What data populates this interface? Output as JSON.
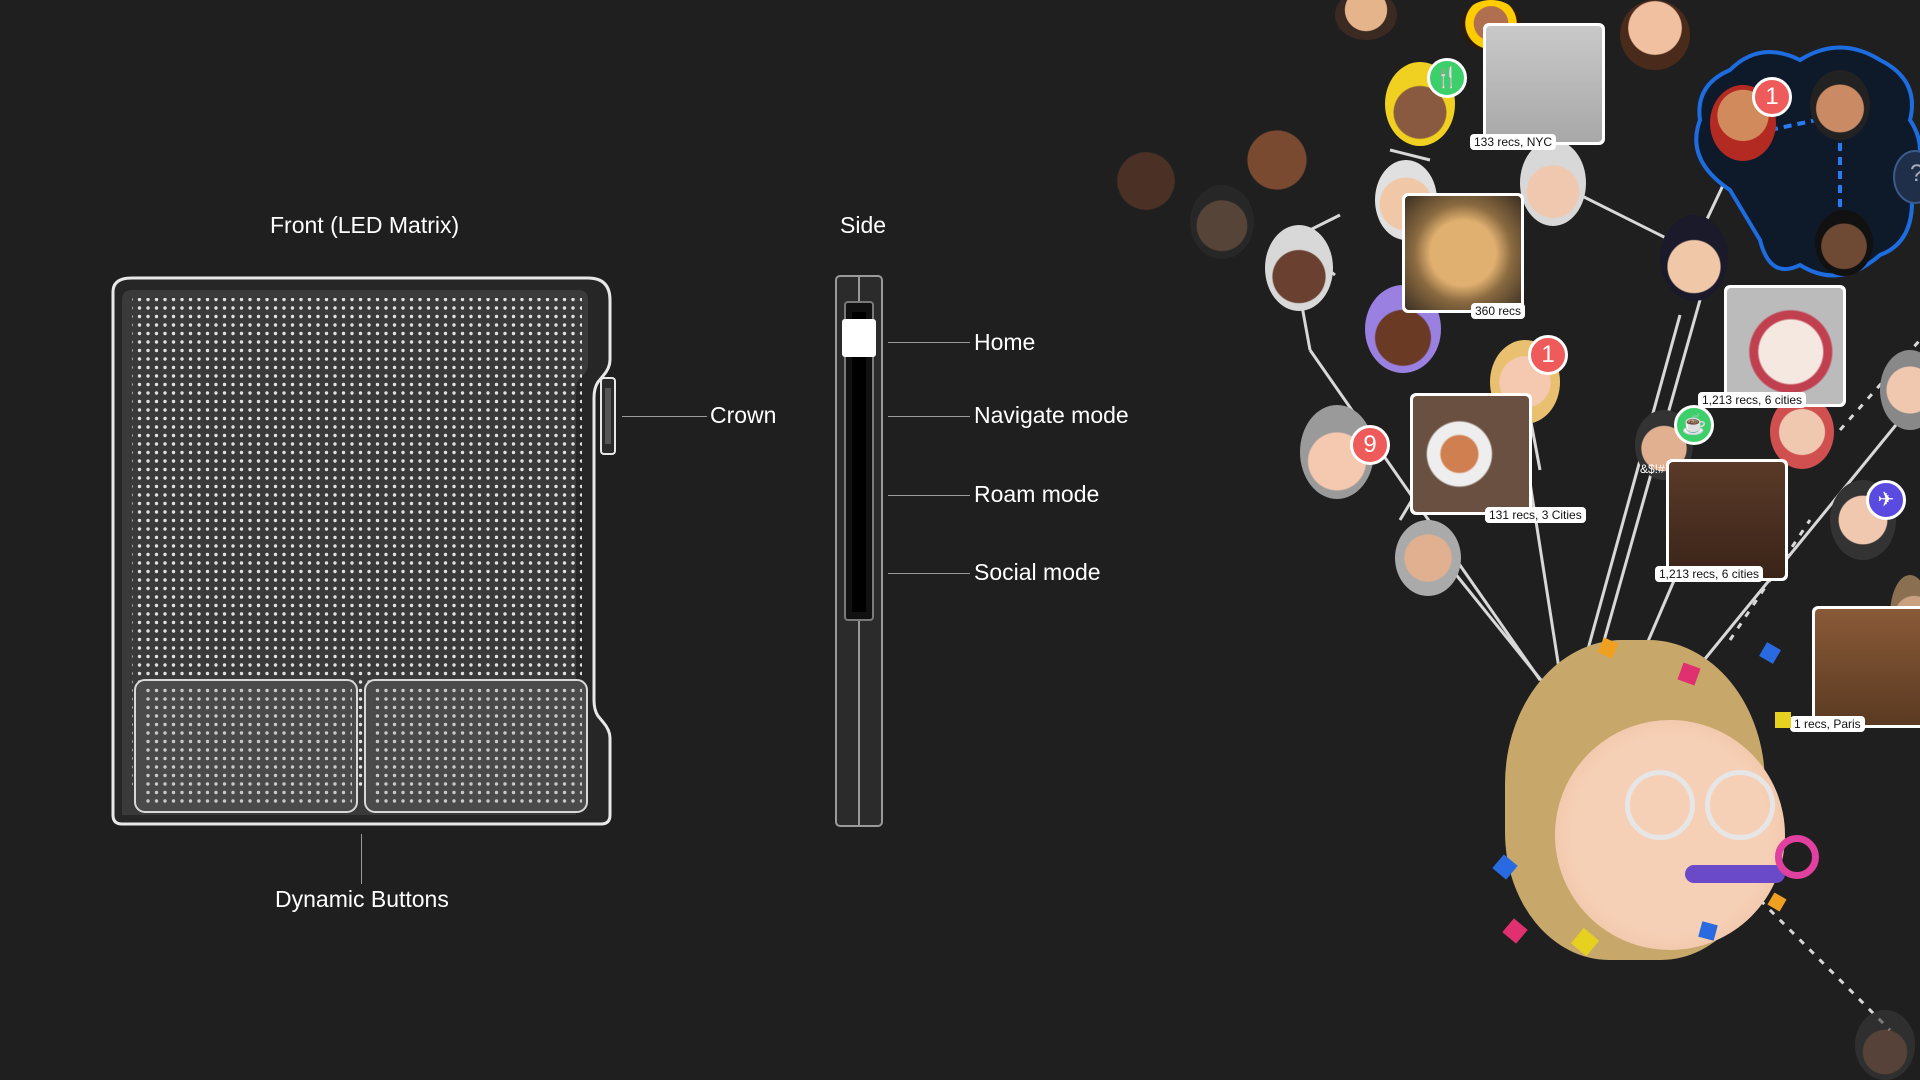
{
  "front": {
    "title": "Front (LED Matrix)",
    "crown_label": "Crown",
    "buttons_label": "Dynamic Buttons"
  },
  "side": {
    "title": "Side",
    "modes": [
      "Home",
      "Navigate mode",
      "Roam mode",
      "Social mode"
    ]
  },
  "map": {
    "tags": [
      "133 recs, NYC",
      "360 recs",
      "1,213 recs, 6 cities",
      "131 recs, 3 Cities",
      "1,213 recs, 6 cities",
      "1 recs, Paris"
    ],
    "badges": [
      "1",
      "1",
      "9"
    ],
    "question_mark": "?",
    "symbols_text": "&$!#"
  },
  "colors": {
    "background": "#1f1f1f",
    "device_outline": "#e8e8e8",
    "badge_red": "#ef5a5a",
    "badge_green": "#3ccf6a",
    "cluster_blue": "#1d6de0"
  }
}
